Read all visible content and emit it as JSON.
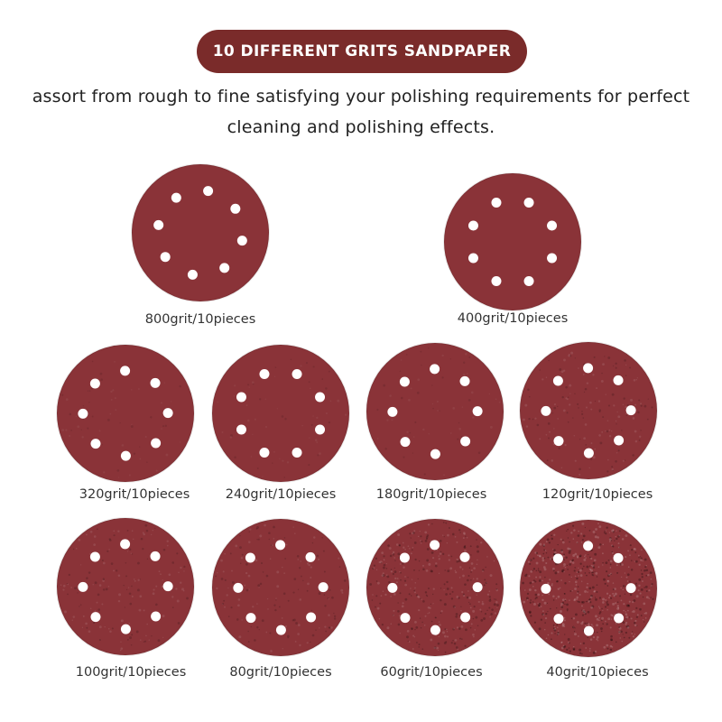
{
  "header": {
    "banner_title": "10 DIFFERENT GRITS SANDPAPER",
    "description_line1": "assort from rough to fine satisfying your polishing requirements for perfect",
    "description_line2": "cleaning and polishing effects."
  },
  "colors": {
    "banner_bg": "#7a2b2a",
    "disc_fill": "#8a3338",
    "hole_fill": "#ffffff"
  },
  "discs": [
    {
      "label": "800grit/10pieces",
      "grain": "very-fine"
    },
    {
      "label": "400grit/10pieces",
      "grain": "very-fine"
    },
    {
      "label": "320grit/10pieces",
      "grain": "fine"
    },
    {
      "label": "240grit/10pieces",
      "grain": "fine"
    },
    {
      "label": "180grit/10pieces",
      "grain": "fine"
    },
    {
      "label": "120grit/10pieces",
      "grain": "medium"
    },
    {
      "label": "100grit/10pieces",
      "grain": "medium"
    },
    {
      "label": "80grit/10pieces",
      "grain": "medium"
    },
    {
      "label": "60grit/10pieces",
      "grain": "coarse"
    },
    {
      "label": "40grit/10pieces",
      "grain": "very-coarse"
    }
  ]
}
